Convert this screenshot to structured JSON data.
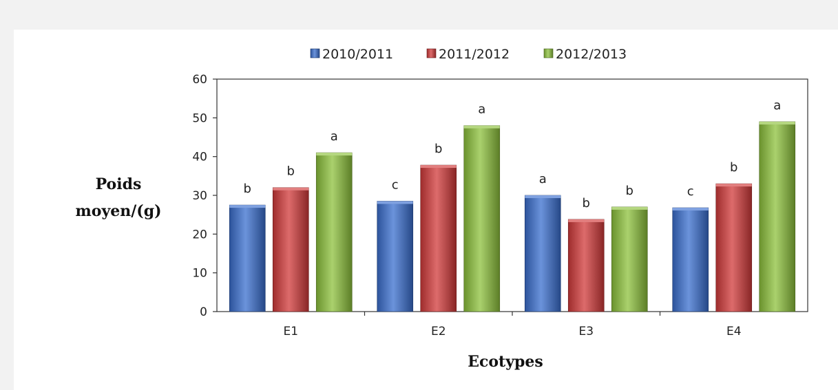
{
  "chart_data": {
    "type": "bar",
    "categories": [
      "E1",
      "E2",
      "E3",
      "E4"
    ],
    "series": [
      {
        "name": "2010/2011",
        "color": "#3a6fcf",
        "values": [
          27.5,
          28.5,
          30,
          26.8
        ],
        "labels": [
          "b",
          "c",
          "a",
          "c"
        ]
      },
      {
        "name": "2011/2012",
        "color": "#d23a3a",
        "values": [
          32,
          37.8,
          23.8,
          33
        ],
        "labels": [
          "b",
          "b",
          "b",
          "b"
        ]
      },
      {
        "name": "2012/2013",
        "color": "#8dc23c",
        "values": [
          41,
          48,
          27,
          49
        ],
        "labels": [
          "a",
          "a",
          "b",
          "a"
        ]
      }
    ],
    "xlabel": "Ecotypes",
    "ylabel": [
      "Poids",
      "moyen/(g)"
    ],
    "ylim": [
      0,
      60
    ],
    "yticks": [
      0,
      10,
      20,
      30,
      40,
      50,
      60
    ],
    "legend_position": "top-center",
    "grid": false
  }
}
